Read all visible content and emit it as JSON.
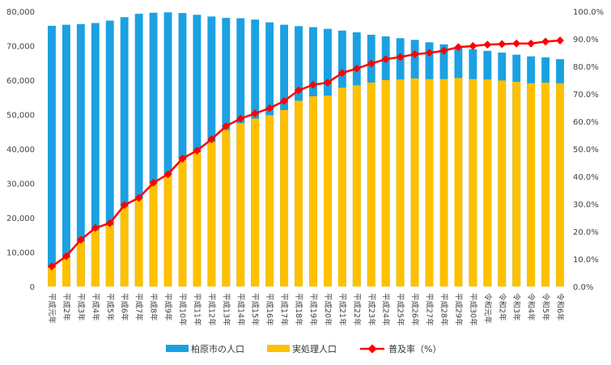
{
  "chart_data": {
    "type": "bar",
    "title": "",
    "xlabel": "",
    "ylabel": "",
    "categories": [
      "平成元年",
      "平成2年",
      "平成3年",
      "平成4年",
      "平成5年",
      "平成6年",
      "平成7年",
      "平成8年",
      "平成9年",
      "平成10年",
      "平成11年",
      "平成12年",
      "平成13年",
      "平成14年",
      "平成15年",
      "平成16年",
      "平成17年",
      "平成18年",
      "平成19年",
      "平成20年",
      "平成21年",
      "平成22年",
      "平成23年",
      "平成24年",
      "平成25年",
      "平成26年",
      "平成27年",
      "平成28年",
      "平成29年",
      "平成30年",
      "令和元年",
      "令和2年",
      "令和3年",
      "令和4年",
      "令和5年",
      "令和6年"
    ],
    "series": [
      {
        "name": "柏原市の人口",
        "type": "bar",
        "axis": "left",
        "color": "#1BA1E2",
        "values": [
          75800,
          76100,
          76300,
          76600,
          77300,
          78300,
          79300,
          79600,
          79700,
          79500,
          79000,
          78500,
          78100,
          78000,
          77600,
          76800,
          76100,
          75700,
          75400,
          74900,
          74400,
          73900,
          73200,
          72700,
          72200,
          71700,
          71000,
          70400,
          69500,
          69000,
          68500,
          68000,
          67400,
          66900,
          66600,
          66100
        ]
      },
      {
        "name": "実処理人口",
        "type": "bar",
        "axis": "left",
        "color": "#FFC000",
        "values": [
          5500,
          8400,
          13000,
          16300,
          17800,
          23200,
          25500,
          30000,
          32500,
          37000,
          39000,
          42000,
          45500,
          47500,
          48800,
          49800,
          51300,
          54000,
          55300,
          55500,
          57800,
          58500,
          59300,
          60000,
          60200,
          60500,
          60300,
          60300,
          60600,
          60300,
          60200,
          59900,
          59500,
          59100,
          59300,
          59100
        ]
      },
      {
        "name": "普及率（%）",
        "type": "line",
        "axis": "right",
        "color": "#FF0000",
        "values": [
          7.3,
          11.0,
          17.0,
          21.3,
          23.0,
          29.6,
          32.2,
          37.7,
          40.8,
          46.5,
          49.4,
          53.5,
          58.3,
          61.0,
          62.9,
          64.8,
          67.4,
          71.3,
          73.3,
          74.1,
          77.6,
          79.2,
          81.0,
          82.6,
          83.4,
          84.4,
          84.9,
          85.7,
          87.0,
          87.4,
          87.9,
          88.1,
          88.3,
          88.3,
          89.0,
          89.4
        ]
      }
    ],
    "y_left": {
      "min": 0,
      "max": 80000,
      "step": 10000,
      "tick_labels": [
        "0",
        "10,000",
        "20,000",
        "30,000",
        "40,000",
        "50,000",
        "60,000",
        "70,000",
        "80,000"
      ]
    },
    "y_right": {
      "min": 0,
      "max": 100,
      "step": 10,
      "tick_labels": [
        "0.0%",
        "10.0%",
        "20.0%",
        "30.0%",
        "40.0%",
        "50.0%",
        "60.0%",
        "70.0%",
        "80.0%",
        "90.0%",
        "100.0%"
      ]
    },
    "legend": {
      "placement": "bottom-center",
      "entries": [
        "柏原市の人口",
        "実処理人口",
        "普及率（%）"
      ]
    },
    "grid": false
  }
}
